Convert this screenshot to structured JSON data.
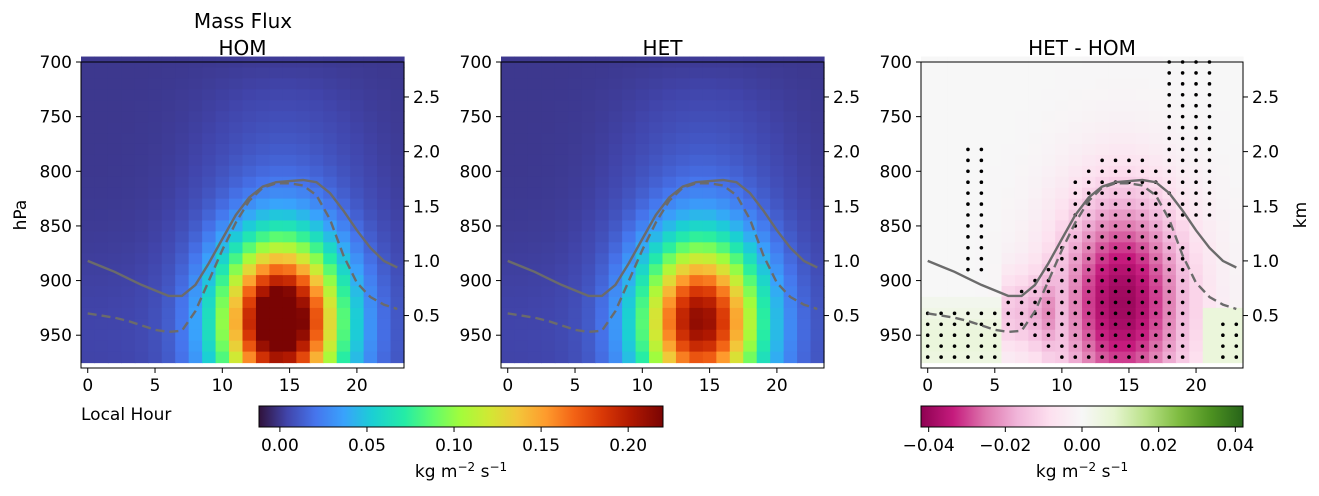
{
  "figure_title": "Mass Flux",
  "chart_data": [
    {
      "type": "heatmap",
      "title": "HOM",
      "xlabel": "Local Hour",
      "ylabel": "hPa",
      "x_ticks": [
        0,
        5,
        10,
        15,
        20
      ],
      "y_ticks": [
        700,
        750,
        800,
        850,
        900,
        950
      ],
      "right_ticks": [
        0.5,
        1.0,
        1.5,
        2.0,
        2.5
      ],
      "right_tick_labels": [
        "0.5",
        "1.0",
        "1.5",
        "2.0",
        "2.5"
      ],
      "xlim": [
        -0.5,
        23.5
      ],
      "ylim": [
        980,
        700
      ],
      "right_ylim": [
        0.02,
        2.82
      ],
      "peak": 0.22,
      "solid_line_name": "",
      "solid_line_km": [
        1.0,
        0.95,
        0.9,
        0.84,
        0.78,
        0.73,
        0.68,
        0.68,
        0.78,
        0.98,
        1.2,
        1.42,
        1.58,
        1.68,
        1.72,
        1.73,
        1.74,
        1.72,
        1.62,
        1.46,
        1.28,
        1.12,
        1.0,
        0.94
      ],
      "dashed_line_km": [
        0.52,
        0.5,
        0.48,
        0.45,
        0.41,
        0.37,
        0.35,
        0.36,
        0.54,
        0.82,
        1.1,
        1.35,
        1.55,
        1.67,
        1.71,
        1.71,
        1.69,
        1.6,
        1.38,
        1.05,
        0.8,
        0.67,
        0.6,
        0.56
      ]
    },
    {
      "type": "heatmap",
      "title": "HET",
      "x_ticks": [
        0,
        5,
        10,
        15,
        20
      ],
      "y_ticks": [
        700,
        750,
        800,
        850,
        900,
        950
      ],
      "right_ticks": [
        0.5,
        1.0,
        1.5,
        2.0,
        2.5
      ],
      "right_tick_labels": [
        "0.5",
        "1.0",
        "1.5",
        "2.0",
        "2.5"
      ],
      "xlim": [
        -0.5,
        23.5
      ],
      "ylim": [
        980,
        700
      ],
      "right_ylim": [
        0.02,
        2.82
      ],
      "peak": 0.18,
      "solid_line_km": [
        1.0,
        0.95,
        0.9,
        0.84,
        0.78,
        0.73,
        0.68,
        0.68,
        0.78,
        0.98,
        1.2,
        1.42,
        1.58,
        1.68,
        1.72,
        1.73,
        1.74,
        1.72,
        1.62,
        1.46,
        1.28,
        1.12,
        1.0,
        0.94
      ],
      "dashed_line_km": [
        0.52,
        0.5,
        0.48,
        0.45,
        0.41,
        0.37,
        0.35,
        0.36,
        0.54,
        0.82,
        1.1,
        1.35,
        1.55,
        1.67,
        1.71,
        1.71,
        1.69,
        1.6,
        1.38,
        1.05,
        0.8,
        0.67,
        0.6,
        0.56
      ]
    },
    {
      "type": "heatmap",
      "title": "HET - HOM",
      "right_ylabel": "km",
      "x_ticks": [
        0,
        5,
        10,
        15,
        20
      ],
      "y_ticks": [
        700,
        750,
        800,
        850,
        900,
        950
      ],
      "right_ticks": [
        0.5,
        1.0,
        1.5,
        2.0,
        2.5
      ],
      "right_tick_labels": [
        "0.5",
        "1.0",
        "1.5",
        "2.0",
        "2.5"
      ],
      "xlim": [
        -0.5,
        23.5
      ],
      "ylim": [
        980,
        700
      ],
      "right_ylim": [
        0.02,
        2.82
      ],
      "diff_min": -0.04,
      "stippling": "significance dots",
      "solid_line_km": [
        1.0,
        0.95,
        0.9,
        0.84,
        0.78,
        0.73,
        0.68,
        0.68,
        0.78,
        0.98,
        1.2,
        1.42,
        1.58,
        1.68,
        1.72,
        1.73,
        1.74,
        1.72,
        1.62,
        1.46,
        1.28,
        1.12,
        1.0,
        0.94
      ],
      "dashed_line_km": [
        0.52,
        0.5,
        0.48,
        0.45,
        0.41,
        0.37,
        0.35,
        0.36,
        0.54,
        0.82,
        1.1,
        1.35,
        1.55,
        1.67,
        1.71,
        1.71,
        1.69,
        1.6,
        1.38,
        1.05,
        0.8,
        0.67,
        0.6,
        0.56
      ]
    }
  ],
  "colorbars": [
    {
      "colormap": "turbo",
      "range": [
        -0.012,
        0.22
      ],
      "ticks": [
        0.0,
        0.05,
        0.1,
        0.15,
        0.2
      ],
      "tick_labels": [
        "0.00",
        "0.05",
        "0.10",
        "0.15",
        "0.20"
      ],
      "label": "kg m",
      "label_sup1": "−2",
      "label_mid": " s",
      "label_sup2": "−1"
    },
    {
      "colormap": "PiYG",
      "range": [
        -0.042,
        0.042
      ],
      "ticks": [
        -0.04,
        -0.02,
        0.0,
        0.02,
        0.04
      ],
      "tick_labels": [
        "−0.04",
        "−0.02",
        "0.00",
        "0.02",
        "0.04"
      ],
      "label": "kg m",
      "label_sup1": "−2",
      "label_mid": " s",
      "label_sup2": "−1"
    }
  ],
  "colors": {
    "line": "#6b6b6b",
    "dots": "#000000"
  }
}
